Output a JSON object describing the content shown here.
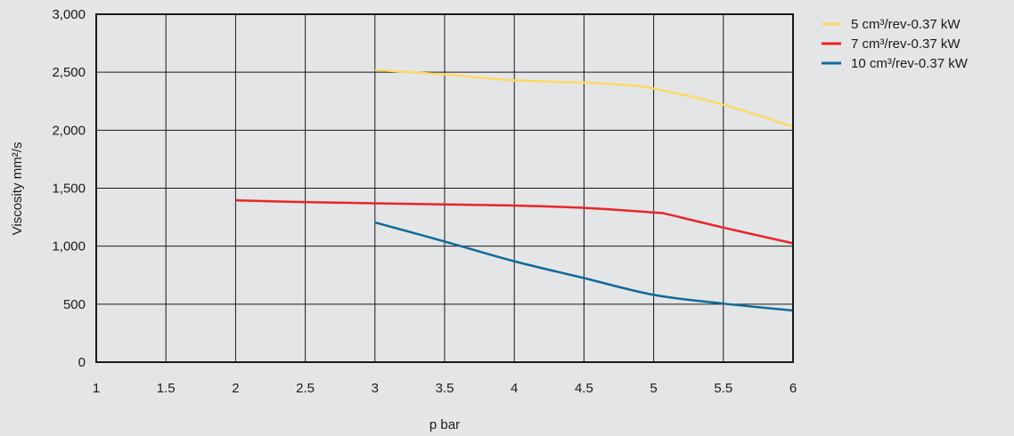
{
  "chart_data": {
    "type": "line",
    "title": "",
    "xlabel": "p bar",
    "ylabel": "Viscosity mm²/s",
    "xlim": [
      1,
      6
    ],
    "ylim": [
      0,
      3000
    ],
    "x_ticks": [
      1,
      1.5,
      2,
      2.5,
      3,
      3.5,
      4,
      4.5,
      5,
      5.5,
      6
    ],
    "x_tick_labels": [
      "1",
      "1.5",
      "2",
      "2.5",
      "3",
      "3.5",
      "4",
      "4.5",
      "5",
      "5.5",
      "6"
    ],
    "y_ticks": [
      0,
      500,
      1000,
      1500,
      2000,
      2500,
      3000
    ],
    "y_tick_labels": [
      "0",
      "500",
      "1,000",
      "1,500",
      "2,000",
      "2,500",
      "3,000"
    ],
    "grid": true,
    "legend_position": "top-right, outside plot",
    "series": [
      {
        "name": "5 cm³/rev-0.37 kW",
        "color": "#ffd966",
        "x": [
          3,
          3.5,
          4,
          4.5,
          4.8,
          5,
          5.5,
          6
        ],
        "y": [
          2520,
          2480,
          2430,
          2410,
          2390,
          2360,
          2220,
          2030
        ]
      },
      {
        "name": "7 cm³/rev-0.37 kW",
        "color": "#e8262a",
        "x": [
          2,
          2.5,
          3,
          3.5,
          4,
          4.5,
          5,
          5.1,
          5.5,
          6
        ],
        "y": [
          1395,
          1380,
          1370,
          1360,
          1350,
          1330,
          1290,
          1275,
          1160,
          1025
        ]
      },
      {
        "name": "10 cm³/rev-0.37 kW",
        "color": "#0f6a9a",
        "x": [
          3,
          3.5,
          4,
          4.5,
          5,
          5.5,
          6
        ],
        "y": [
          1205,
          1040,
          870,
          725,
          580,
          505,
          445
        ]
      }
    ]
  }
}
